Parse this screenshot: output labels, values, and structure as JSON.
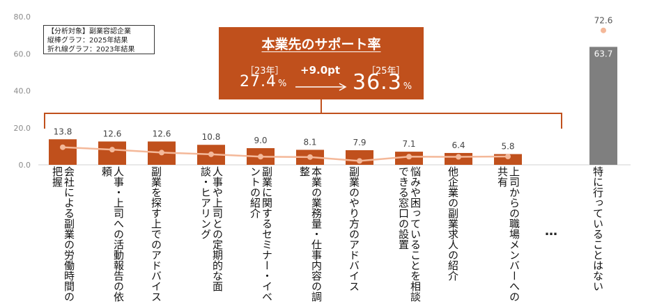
{
  "chart_data": {
    "type": "bar",
    "title": "",
    "xlabel": "",
    "ylabel": "",
    "ylim": [
      0,
      80
    ],
    "yticks": [
      "0.0",
      "20.0",
      "40.0",
      "60.0",
      "80.0"
    ],
    "categories": [
      "会社による副業の労働時間の把握",
      "人事・上司への活動報告の依頼",
      "副業を探す上でのアドバイス",
      "人事や上司との定期的な面談・ヒアリング",
      "副業に関するセミナー・イベントの紹介",
      "本業の業務量・仕事内容の調整",
      "副業のやり方のアドバイス",
      "悩みや困っていることを相談できる窓口の設置",
      "他企業の副業求人の紹介",
      "上司からの職場メンバーへの共有",
      "特に行っていることはない"
    ],
    "series": [
      {
        "name": "縦棒グラフ：2025年結果",
        "type": "bar",
        "values": [
          13.8,
          12.6,
          12.6,
          10.8,
          9.0,
          8.1,
          7.9,
          7.1,
          6.4,
          5.8,
          63.7
        ],
        "colors": [
          "#c0501c",
          "#c0501c",
          "#c0501c",
          "#c0501c",
          "#c0501c",
          "#c0501c",
          "#c0501c",
          "#c0501c",
          "#c0501c",
          "#c0501c",
          "#7f7f7f"
        ]
      },
      {
        "name": "折れ線グラフ：2023年結果",
        "type": "line",
        "values": [
          9.5,
          8.2,
          6.6,
          5.7,
          4.4,
          4.2,
          2.1,
          4.4,
          4.3,
          4.5,
          72.6
        ],
        "labeled_values": {
          "10": "72.6"
        },
        "color": "#f4b899"
      }
    ],
    "ellipsis": "…"
  },
  "legend": {
    "title": "【分析対象】副業容認企業",
    "bar_note": "縦棒グラフ：2025年結果",
    "line_note": "折れ線グラフ：2023年結果"
  },
  "callout": {
    "title": "本業先のサポート率",
    "year_from": "［23年］",
    "value_from": "27.4",
    "diff": "+9.0pt",
    "year_to": "［25年］",
    "value_to": "36.3",
    "unit": "%",
    "color": "#c0501c"
  }
}
